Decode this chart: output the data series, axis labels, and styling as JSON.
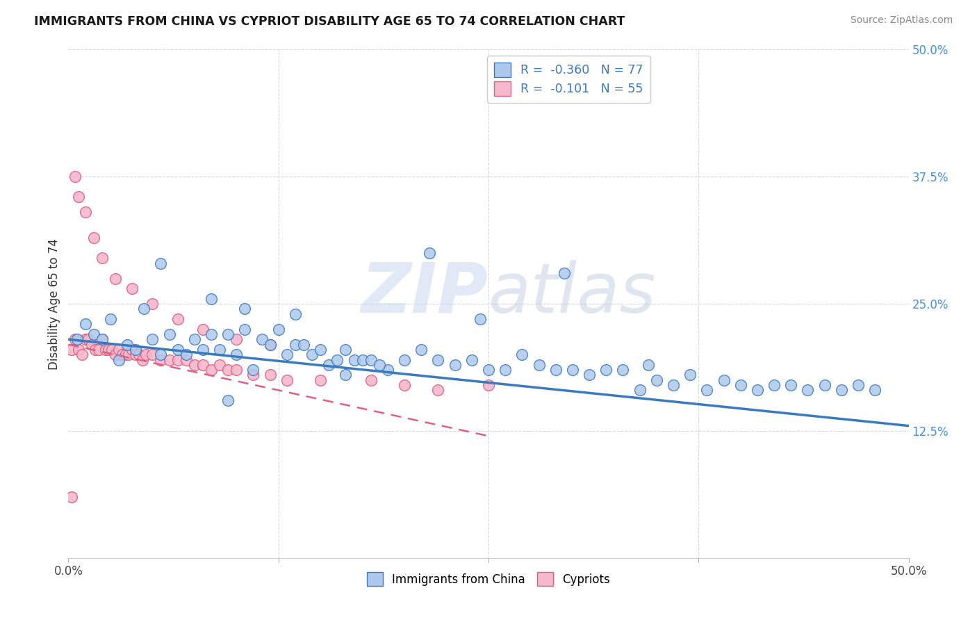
{
  "title": "IMMIGRANTS FROM CHINA VS CYPRIOT DISABILITY AGE 65 TO 74 CORRELATION CHART",
  "source": "Source: ZipAtlas.com",
  "ylabel": "Disability Age 65 to 74",
  "xlim": [
    0.0,
    0.5
  ],
  "ylim": [
    0.0,
    0.5
  ],
  "legend_r_china": "-0.360",
  "legend_n_china": "77",
  "legend_r_cypriot": "-0.101",
  "legend_n_cypriot": "55",
  "china_color": "#adc8ec",
  "cypriot_color": "#f5b8cc",
  "china_line_color": "#3a7abf",
  "cypriot_line_color": "#e06080",
  "watermark_text": "ZIPatlas",
  "background_color": "#ffffff",
  "grid_color": "#d8d8d8",
  "title_fontsize": 12.5,
  "axis_fontsize": 12,
  "china_scatter_x": [
    0.005,
    0.01,
    0.015,
    0.02,
    0.025,
    0.03,
    0.035,
    0.04,
    0.045,
    0.05,
    0.055,
    0.06,
    0.065,
    0.07,
    0.075,
    0.08,
    0.085,
    0.09,
    0.095,
    0.1,
    0.105,
    0.11,
    0.115,
    0.12,
    0.125,
    0.13,
    0.135,
    0.14,
    0.145,
    0.15,
    0.155,
    0.16,
    0.165,
    0.17,
    0.175,
    0.18,
    0.19,
    0.2,
    0.21,
    0.22,
    0.23,
    0.24,
    0.25,
    0.26,
    0.27,
    0.28,
    0.29,
    0.3,
    0.31,
    0.32,
    0.33,
    0.34,
    0.35,
    0.36,
    0.37,
    0.38,
    0.39,
    0.4,
    0.41,
    0.42,
    0.43,
    0.44,
    0.45,
    0.46,
    0.47,
    0.48,
    0.055,
    0.085,
    0.105,
    0.135,
    0.185,
    0.215,
    0.245,
    0.295,
    0.345,
    0.165,
    0.095
  ],
  "china_scatter_y": [
    0.215,
    0.23,
    0.22,
    0.215,
    0.235,
    0.195,
    0.21,
    0.205,
    0.245,
    0.215,
    0.2,
    0.22,
    0.205,
    0.2,
    0.215,
    0.205,
    0.22,
    0.205,
    0.22,
    0.2,
    0.225,
    0.185,
    0.215,
    0.21,
    0.225,
    0.2,
    0.21,
    0.21,
    0.2,
    0.205,
    0.19,
    0.195,
    0.205,
    0.195,
    0.195,
    0.195,
    0.185,
    0.195,
    0.205,
    0.195,
    0.19,
    0.195,
    0.185,
    0.185,
    0.2,
    0.19,
    0.185,
    0.185,
    0.18,
    0.185,
    0.185,
    0.165,
    0.175,
    0.17,
    0.18,
    0.165,
    0.175,
    0.17,
    0.165,
    0.17,
    0.17,
    0.165,
    0.17,
    0.165,
    0.17,
    0.165,
    0.29,
    0.255,
    0.245,
    0.24,
    0.19,
    0.3,
    0.235,
    0.28,
    0.19,
    0.18,
    0.155
  ],
  "cypriot_scatter_x": [
    0.002,
    0.004,
    0.006,
    0.008,
    0.01,
    0.012,
    0.014,
    0.016,
    0.018,
    0.02,
    0.022,
    0.024,
    0.026,
    0.028,
    0.03,
    0.032,
    0.034,
    0.036,
    0.038,
    0.04,
    0.042,
    0.044,
    0.046,
    0.05,
    0.055,
    0.06,
    0.065,
    0.07,
    0.075,
    0.08,
    0.085,
    0.09,
    0.095,
    0.1,
    0.11,
    0.12,
    0.13,
    0.15,
    0.18,
    0.2,
    0.22,
    0.25,
    0.004,
    0.006,
    0.01,
    0.015,
    0.02,
    0.028,
    0.038,
    0.05,
    0.065,
    0.08,
    0.1,
    0.12,
    0.002
  ],
  "cypriot_scatter_y": [
    0.205,
    0.215,
    0.205,
    0.2,
    0.215,
    0.215,
    0.21,
    0.205,
    0.205,
    0.215,
    0.205,
    0.205,
    0.205,
    0.2,
    0.205,
    0.2,
    0.2,
    0.2,
    0.205,
    0.2,
    0.2,
    0.195,
    0.2,
    0.2,
    0.195,
    0.195,
    0.195,
    0.195,
    0.19,
    0.19,
    0.185,
    0.19,
    0.185,
    0.185,
    0.18,
    0.18,
    0.175,
    0.175,
    0.175,
    0.17,
    0.165,
    0.17,
    0.375,
    0.355,
    0.34,
    0.315,
    0.295,
    0.275,
    0.265,
    0.25,
    0.235,
    0.225,
    0.215,
    0.21,
    0.06
  ],
  "china_trendline_x": [
    0.0,
    0.5
  ],
  "china_trendline_y": [
    0.215,
    0.13
  ],
  "cypriot_trendline_x": [
    0.0,
    0.25
  ],
  "cypriot_trendline_y": [
    0.21,
    0.12
  ]
}
